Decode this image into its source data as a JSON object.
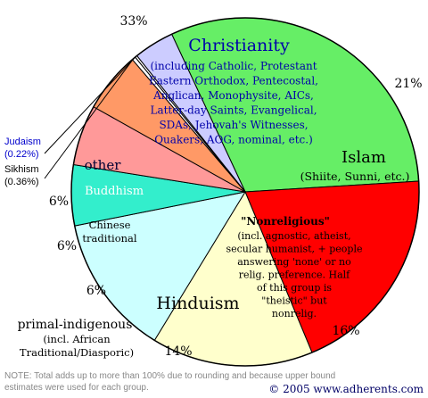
{
  "chart_data": {
    "type": "pie",
    "slices": [
      {
        "key": "christianity",
        "value": 33,
        "pct_label": "33%",
        "color": "#66ee66",
        "label": "Christianity",
        "sublines": [
          "(including Catholic, Protestant",
          "Eastern Orthodox, Pentecostal,",
          "Anglican, Monophysite, AICs,",
          "Latter-day Saints, Evangelical,",
          "SDAs, Jehovah's Witnesses,",
          "Quakers, AOG, nominal, etc.)"
        ]
      },
      {
        "key": "islam",
        "value": 21,
        "pct_label": "21%",
        "color": "#ff0000",
        "label": "Islam",
        "sublines": [
          "(Shiite, Sunni, etc.)"
        ]
      },
      {
        "key": "nonreligious",
        "value": 16,
        "pct_label": "16%",
        "color": "#ffffcc",
        "label": "\"Nonreligious\"",
        "sublines": [
          "(incl. agnostic, atheist,",
          "secular humanist, + people",
          "answering 'none' or no",
          "relig. preference. Half",
          "of this group is",
          "\"theistic\" but",
          "nonrelig."
        ]
      },
      {
        "key": "hinduism",
        "value": 14,
        "pct_label": "14%",
        "color": "#ccffff",
        "label": "Hinduism",
        "sublines": []
      },
      {
        "key": "primal",
        "value": 6,
        "pct_label": "6%",
        "color": "#33eecc",
        "label": "primal-indigenous",
        "sublines": [
          "(incl. African",
          "Traditional/Diasporic)"
        ]
      },
      {
        "key": "chinese",
        "value": 6,
        "pct_label": "6%",
        "color": "#ff9999",
        "label": "Chinese traditional",
        "sublines": [
          "Chinese",
          "traditional"
        ]
      },
      {
        "key": "buddhism",
        "value": 6,
        "pct_label": "6%",
        "color": "#ff9966",
        "label": "Buddhism",
        "sublines": []
      },
      {
        "key": "sikhism",
        "value": 0.36,
        "pct_label": "",
        "color": "#ffffff",
        "label": "Sikhism",
        "sublines": [
          "(0.36%)"
        ]
      },
      {
        "key": "judaism",
        "value": 0.22,
        "pct_label": "",
        "color": "#ffffff",
        "label": "Judaism",
        "sublines": [
          "(0.22%)"
        ]
      },
      {
        "key": "other",
        "value": 4,
        "pct_label": "",
        "color": "#ccccff",
        "label": "other",
        "sublines": []
      }
    ],
    "label_colors": {
      "christianity": "#0000aa",
      "islam": "#000000",
      "nonreligious": "#000000",
      "hinduism": "#000000",
      "primal": "#000000",
      "chinese": "#000000",
      "buddhism": "#ffffff",
      "other": "#000033",
      "judaism": "#0000cc",
      "sikhism": "#000000",
      "pct": "#000000"
    },
    "note": "NOTE: Total adds up to more than 100% due to rounding and because upper bound estimates were used for each group.",
    "copyright": "© 2005 www.adherents.com"
  }
}
